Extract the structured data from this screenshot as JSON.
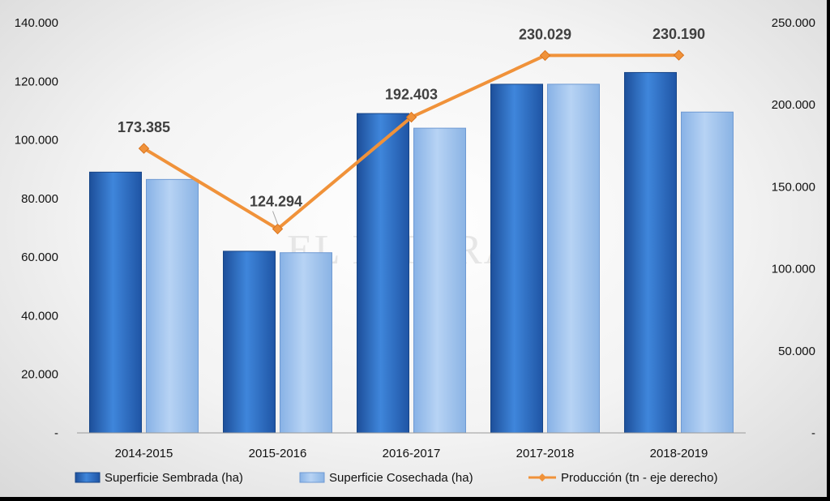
{
  "chart_data": {
    "type": "bar",
    "categories": [
      "2014-2015",
      "2015-2016",
      "2016-2017",
      "2017-2018",
      "2018-2019"
    ],
    "series": [
      {
        "name": "Superficie Sembrada (ha)",
        "type": "bar",
        "axis": "left",
        "color": "#2f6fc9",
        "values": [
          89000,
          62000,
          109000,
          119000,
          123000
        ]
      },
      {
        "name": "Superficie Cosechada (ha)",
        "type": "bar",
        "axis": "left",
        "color": "#9cc2ee",
        "values": [
          86500,
          61500,
          104000,
          119000,
          109500
        ]
      },
      {
        "name": "Producción (tn - eje derecho)",
        "type": "line",
        "axis": "right",
        "color": "#f0923a",
        "values": [
          173385,
          124294,
          192403,
          230029,
          230190
        ],
        "labels": [
          "173.385",
          "124.294",
          "192.403",
          "230.029",
          "230.190"
        ]
      }
    ],
    "y_left": {
      "min": 0,
      "max": 140000,
      "ticks": [
        0,
        20000,
        40000,
        60000,
        80000,
        100000,
        120000,
        140000
      ],
      "tick_labels": [
        "-",
        "20.000",
        "40.000",
        "60.000",
        "80.000",
        "100.000",
        "120.000",
        "140.000"
      ]
    },
    "y_right": {
      "min": 0,
      "max": 250000,
      "ticks": [
        0,
        50000,
        100000,
        150000,
        200000,
        250000
      ],
      "tick_labels": [
        "-",
        "50.000",
        "100.000",
        "150.000",
        "200.000",
        "250.000"
      ]
    },
    "grid": false,
    "legend_position": "bottom",
    "watermark": "EL LITORAL"
  }
}
